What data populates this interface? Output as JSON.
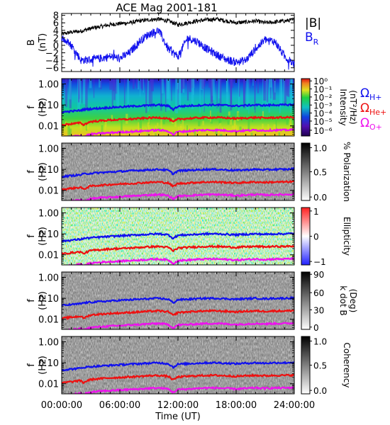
{
  "title": "ACE Mag 2001-181",
  "x_axis": {
    "label": "Time (UT)",
    "ticks": [
      "00:00:00",
      "06:00:00",
      "12:00:00",
      "18:00:00",
      "24:00:00"
    ]
  },
  "chart_data": [
    {
      "type": "line",
      "panel": "magnetic-field",
      "ylabel_line1": "B",
      "ylabel_line2": "(nT)",
      "ylim": [
        -7,
        8.5
      ],
      "yticks": [
        "8",
        "6",
        "4",
        "2",
        "0",
        "−2",
        "−4",
        "−6"
      ],
      "ytick_values": [
        8,
        6,
        4,
        2,
        0,
        -2,
        -4,
        -6
      ],
      "series": [
        {
          "name": "|B|",
          "color": "#000000",
          "x_hours": [
            0,
            1,
            2,
            3,
            4,
            5,
            6,
            7,
            8,
            9,
            10,
            11,
            12,
            13,
            14,
            15,
            16,
            17,
            18,
            19,
            20,
            21,
            22,
            23,
            24
          ],
          "values": [
            3,
            3.5,
            3.8,
            4.5,
            5,
            5.5,
            5.8,
            6,
            6.5,
            6.8,
            7,
            6.5,
            5.5,
            6,
            6.5,
            6.8,
            7,
            6.5,
            6,
            6.2,
            6.5,
            6,
            6.2,
            6.5,
            6.8
          ]
        },
        {
          "name": "B",
          "subscript": "R",
          "color": "#1010ee",
          "x_hours": [
            0,
            1,
            2,
            3,
            4,
            5,
            6,
            7,
            8,
            9,
            10,
            11,
            12,
            13,
            14,
            15,
            16,
            17,
            18,
            19,
            20,
            21,
            22,
            23,
            24
          ],
          "values": [
            2,
            0,
            -4,
            -3.8,
            -3.5,
            -3,
            -3.5,
            -2,
            1,
            3,
            4,
            -1,
            -3,
            2,
            1,
            -1,
            -2.5,
            -3.8,
            -4.5,
            -4,
            -1,
            1.5,
            1,
            -3,
            -5
          ]
        }
      ]
    },
    {
      "type": "heatmap",
      "panel": "intensity",
      "ylabel_line1": "f",
      "ylabel_line2": "(Hz)",
      "yticks": [
        "1.00",
        "0.10",
        "0.01"
      ],
      "colorbar": {
        "label": "Intensity",
        "unit": "(nT²/Hz)",
        "ticks": [
          "10⁰",
          "10⁻¹",
          "10⁻²",
          "10⁻³",
          "10⁻⁴",
          "10⁻⁵",
          "10⁻⁶"
        ]
      },
      "legend": [
        {
          "symbol": "Ω",
          "subscript": "H+",
          "color": "#1010ee"
        },
        {
          "symbol": "Ω",
          "subscript": "He+",
          "color": "#ee1010"
        },
        {
          "symbol": "Ω",
          "subscript": "O+",
          "color": "#ee10ee"
        }
      ]
    },
    {
      "type": "heatmap",
      "panel": "polarization",
      "ylabel_line1": "f",
      "ylabel_line2": "(Hz)",
      "yticks": [
        "1.00",
        "0.10",
        "0.01"
      ],
      "colorbar": {
        "label": "% Polarization",
        "ticks": [
          "1.0",
          "0.5",
          "0.0"
        ]
      }
    },
    {
      "type": "heatmap",
      "panel": "ellipticity",
      "ylabel_line1": "f",
      "ylabel_line2": "(Hz)",
      "yticks": [
        "1.00",
        "0.10",
        "0.01"
      ],
      "colorbar": {
        "label": "Ellipticity",
        "ticks": [
          "1",
          "0",
          "−1"
        ]
      }
    },
    {
      "type": "heatmap",
      "panel": "k-dot-b",
      "ylabel_line1": "f",
      "ylabel_line2": "(Hz)",
      "yticks": [
        "1.00",
        "0.10",
        "0.01"
      ],
      "colorbar": {
        "label": "k dot B",
        "unit": "(Deg)",
        "ticks": [
          "90",
          "60",
          "30",
          "0"
        ]
      }
    },
    {
      "type": "heatmap",
      "panel": "coherency",
      "ylabel_line1": "f",
      "ylabel_line2": "(Hz)",
      "yticks": [
        "1.00",
        "0.10",
        "0.01"
      ],
      "colorbar": {
        "label": "Coherency",
        "ticks": [
          "1.0",
          "0.5",
          "0.0"
        ]
      }
    }
  ],
  "gyrofrequency_lines": {
    "x_hours": [
      0,
      1,
      2,
      2.2,
      3,
      4,
      5,
      6,
      7,
      8,
      9,
      10,
      11,
      11.5,
      12,
      13,
      14,
      15,
      16,
      17,
      18,
      19,
      20,
      21,
      22,
      23,
      24
    ],
    "H+": [
      0.045,
      0.05,
      0.055,
      0.06,
      0.065,
      0.07,
      0.075,
      0.08,
      0.085,
      0.09,
      0.095,
      0.1,
      0.09,
      0.06,
      0.085,
      0.09,
      0.095,
      0.1,
      0.1,
      0.095,
      0.09,
      0.095,
      0.1,
      0.095,
      0.1,
      0.1,
      0.105
    ],
    "He+": [
      0.011,
      0.0125,
      0.014,
      0.011,
      0.016,
      0.0175,
      0.019,
      0.02,
      0.021,
      0.0225,
      0.024,
      0.025,
      0.0225,
      0.015,
      0.021,
      0.0225,
      0.024,
      0.025,
      0.025,
      0.024,
      0.0225,
      0.024,
      0.025,
      0.024,
      0.025,
      0.025,
      0.026
    ],
    "O+": [
      0.0028,
      0.0031,
      0.0035,
      0.003,
      0.004,
      0.0044,
      0.0047,
      0.005,
      0.0053,
      0.0056,
      0.006,
      0.0063,
      0.0056,
      0.0038,
      0.0053,
      0.0056,
      0.006,
      0.0063,
      0.0063,
      0.006,
      0.0056,
      0.006,
      0.0063,
      0.006,
      0.0063,
      0.0063,
      0.0066
    ]
  },
  "colors": {
    "H+": "#1010ee",
    "He+": "#ee1010",
    "O+": "#ee10ee"
  }
}
